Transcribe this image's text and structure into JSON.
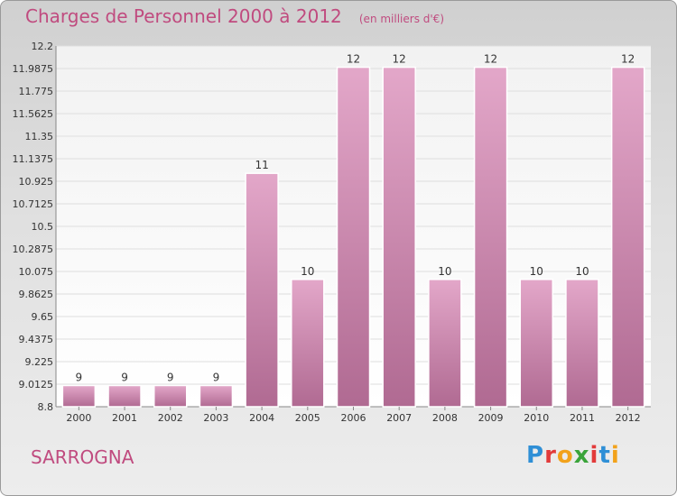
{
  "header": {
    "title": "Charges de Personnel 2000 à 2012",
    "subtitle": "(en milliers d'€)"
  },
  "footer": {
    "place": "SARROGNA",
    "logo": "Proxiti",
    "logo_colors": [
      "#2f8fd6",
      "#e23b3b",
      "#f2a21b",
      "#3aa43a",
      "#e23b3b",
      "#2f8fd6",
      "#f2a21b"
    ]
  },
  "colors": {
    "bar_top": "#e3a7c9",
    "bar_bottom": "#b06a92",
    "accent": "#c04b7f"
  },
  "chart_data": {
    "type": "bar",
    "title": "Charges de Personnel 2000 à 2012",
    "subtitle": "(en milliers d'€)",
    "categories": [
      "2000",
      "2001",
      "2002",
      "2003",
      "2004",
      "2005",
      "2006",
      "2007",
      "2008",
      "2009",
      "2010",
      "2011",
      "2012"
    ],
    "values": [
      9,
      9,
      9,
      9,
      11,
      10,
      12,
      12,
      10,
      12,
      10,
      10,
      12
    ],
    "data_labels": [
      "9",
      "9",
      "9",
      "9",
      "11",
      "10",
      "12",
      "12",
      "10",
      "12",
      "10",
      "10",
      "12"
    ],
    "ylim": [
      8.8,
      12.2
    ],
    "yticks": [
      "12.2",
      "11.9875",
      "11.775",
      "11.5625",
      "11.35",
      "11.1375",
      "10.925",
      "10.7125",
      "10.5",
      "10.2875",
      "10.075",
      "9.8625",
      "9.65",
      "9.4375",
      "9.225",
      "9.0125",
      "8.8"
    ],
    "grid": true,
    "legend": "none"
  }
}
